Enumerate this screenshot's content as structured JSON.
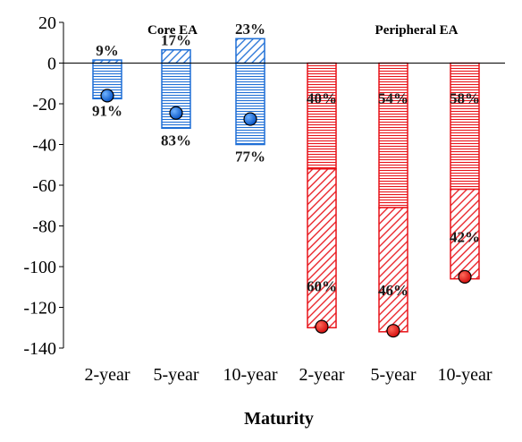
{
  "chart_data": {
    "type": "bar",
    "subtype": "stacked-with-markers",
    "xlabel": "Maturity",
    "ylim": [
      -140,
      20
    ],
    "yticks": [
      20,
      0,
      -20,
      -40,
      -60,
      -80,
      -100,
      -120,
      -140
    ],
    "grid": false,
    "groups": [
      {
        "name": "Core EA",
        "color": "#1f6fd6"
      },
      {
        "name": "Peripheral EA",
        "color": "#e8141a"
      }
    ],
    "categories": [
      "2-year",
      "5-year",
      "10-year",
      "2-year",
      "5-year",
      "10-year"
    ],
    "bars": [
      {
        "category": "2-year",
        "group": "Core EA",
        "segments": [
          {
            "pattern": "horizontal",
            "from": 0,
            "to": -17.5,
            "label": "91%"
          },
          {
            "pattern": "diagonal",
            "from": 0,
            "to": 1.5,
            "label": "9%"
          }
        ],
        "marker": -16
      },
      {
        "category": "5-year",
        "group": "Core EA",
        "segments": [
          {
            "pattern": "horizontal",
            "from": 0,
            "to": -32,
            "label": "83%"
          },
          {
            "pattern": "diagonal",
            "from": 0,
            "to": 6.5,
            "label": "17%"
          }
        ],
        "marker": -24.5
      },
      {
        "category": "10-year",
        "group": "Core EA",
        "segments": [
          {
            "pattern": "horizontal",
            "from": 0,
            "to": -40,
            "label": "77%"
          },
          {
            "pattern": "diagonal",
            "from": 0,
            "to": 12,
            "label": "23%"
          }
        ],
        "marker": -27.5
      },
      {
        "category": "2-year",
        "group": "Peripheral EA",
        "segments": [
          {
            "pattern": "horizontal",
            "from": 0,
            "to": -52,
            "label": "40%"
          },
          {
            "pattern": "diagonal",
            "from": -52,
            "to": -130,
            "label": "60%"
          }
        ],
        "marker": -129.5
      },
      {
        "category": "5-year",
        "group": "Peripheral EA",
        "segments": [
          {
            "pattern": "horizontal",
            "from": 0,
            "to": -71,
            "label": "54%"
          },
          {
            "pattern": "diagonal",
            "from": -71,
            "to": -132,
            "label": "46%"
          }
        ],
        "marker": -131.5
      },
      {
        "category": "10-year",
        "group": "Peripheral EA",
        "segments": [
          {
            "pattern": "horizontal",
            "from": 0,
            "to": -62,
            "label": "58%"
          },
          {
            "pattern": "diagonal",
            "from": -62,
            "to": -106,
            "label": "42%"
          }
        ],
        "marker": -105
      }
    ]
  }
}
